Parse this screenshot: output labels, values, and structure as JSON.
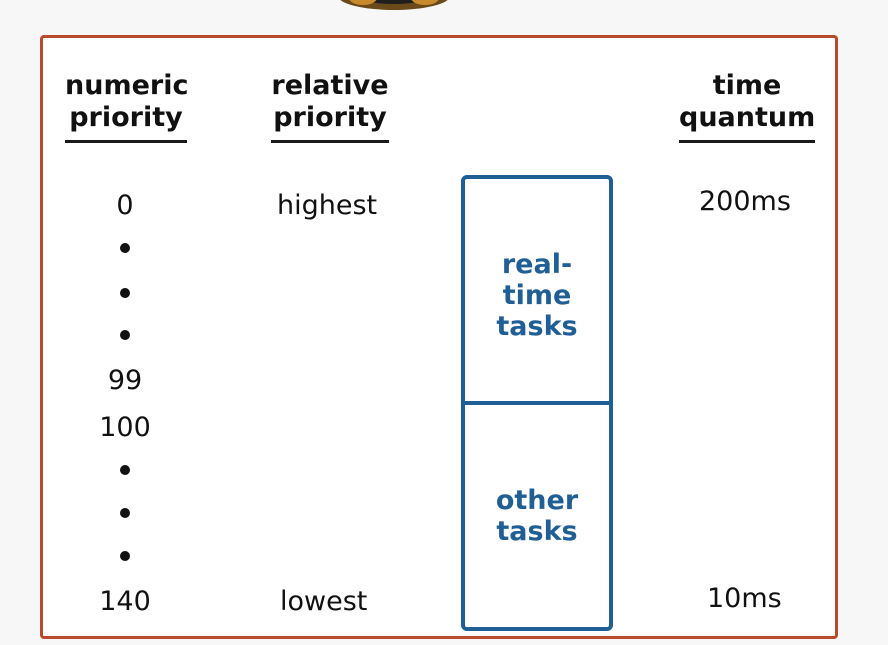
{
  "headers": {
    "numeric": [
      "numeric",
      "priority"
    ],
    "relative": [
      "relative",
      "priority"
    ],
    "time": [
      "time",
      "quantum"
    ]
  },
  "numeric_labels": {
    "top": "0",
    "rt_bottom": "99",
    "other_top": "100",
    "bottom": "140"
  },
  "relative_labels": {
    "top": "highest",
    "bottom": "lowest"
  },
  "time_quantum": {
    "top": "200ms",
    "bottom": "10ms"
  },
  "segments": {
    "realtime": [
      "real-",
      "time",
      "tasks"
    ],
    "other": [
      "other",
      "tasks"
    ]
  },
  "colors": {
    "frame": "#b94a2c",
    "box": "#1f5f96",
    "text": "#111111"
  }
}
